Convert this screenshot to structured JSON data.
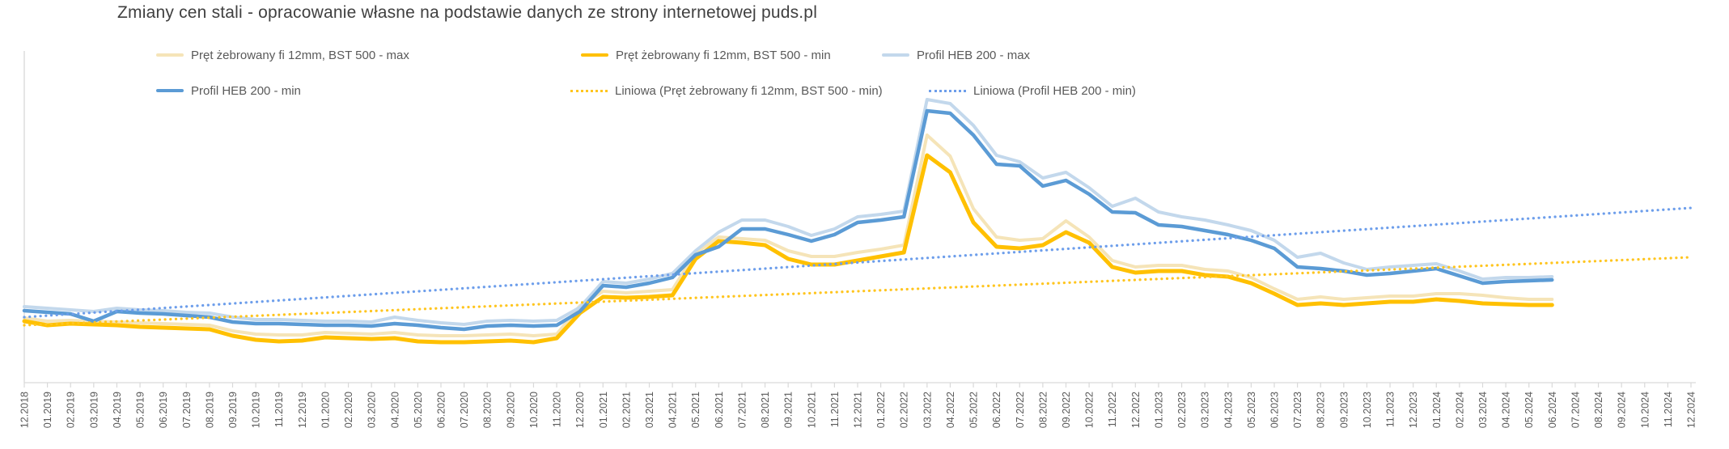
{
  "chart": {
    "title": "Zmiany cen stali - opracowanie własne na podstawie danych ze strony internetowej puds.pl",
    "legend": [
      {
        "label": "Pręt żebrowany fi 12mm, BST 500 - max",
        "color": "#F5E4B8",
        "style": "solid"
      },
      {
        "label": "Pręt żebrowany fi 12mm, BST 500 - min",
        "color": "#FFC000",
        "style": "solid"
      },
      {
        "label": "Profil HEB 200 - max",
        "color": "#C3D8EC",
        "style": "solid"
      },
      {
        "label": "Profil HEB 200 - min",
        "color": "#5B9BD5",
        "style": "solid"
      },
      {
        "label": "Liniowa (Pręt żebrowany fi 12mm, BST 500 - min)",
        "color": "#FFC51F",
        "style": "dotted"
      },
      {
        "label": "Liniowa (Profil HEB 200 - min)",
        "color": "#6D9EEB",
        "style": "dotted"
      }
    ],
    "colors": {
      "axis_line": "#D9D9D9",
      "tick": "#D9D9D9",
      "axis_label_text": "#595959",
      "title_text": "#404040",
      "legend_text": "#595959"
    }
  },
  "chart_data": {
    "type": "line",
    "title": "Zmiany cen stali - opracowanie własne na podstawie danych ze strony internetowej puds.pl",
    "xlabel": "",
    "ylabel": "",
    "y_axis_labels_visible": false,
    "values_unit": "relative price index (chart shows no y-axis scale)",
    "ylim": [
      0,
      410
    ],
    "grid": false,
    "legend_position": "top",
    "x": [
      "12.2018",
      "01.2019",
      "02.2019",
      "03.2019",
      "04.2019",
      "05.2019",
      "06.2019",
      "07.2019",
      "08.2019",
      "09.2019",
      "10.2019",
      "11.2019",
      "12.2019",
      "01.2020",
      "02.2020",
      "03.2020",
      "04.2020",
      "05.2020",
      "06.2020",
      "07.2020",
      "08.2020",
      "09.2020",
      "10.2020",
      "11.2020",
      "12.2020",
      "01.2021",
      "02.2021",
      "03.2021",
      "04.2021",
      "05.2021",
      "06.2021",
      "07.2021",
      "08.2021",
      "09.2021",
      "10.2021",
      "11.2021",
      "12.2021",
      "01.2022",
      "02.2022",
      "03.2022",
      "04.2022",
      "05.2022",
      "06.2022",
      "07.2022",
      "08.2022",
      "09.2022",
      "10.2022",
      "11.2022",
      "12.2022",
      "01.2023",
      "02.2023",
      "03.2023",
      "04.2023",
      "05.2023",
      "06.2023",
      "07.2023",
      "08.2023",
      "09.2023",
      "10.2023",
      "11.2023",
      "12.2023",
      "01.2024",
      "02.2024",
      "03.2024",
      "04.2024",
      "05.2024",
      "06.2024",
      "07.2024",
      "08.2024",
      "09.2024",
      "10.2024",
      "11.2024",
      "12.2024"
    ],
    "data_ends_at": "06.2024",
    "series": [
      {
        "key": "pret-zebrowany-max",
        "name": "Pręt żebrowany fi 12mm, BST 500 - max",
        "color": "#F5E4B8",
        "dash": "solid",
        "width": 4,
        "values": [
          80,
          76,
          77,
          76,
          75,
          74,
          73,
          72,
          71,
          64,
          60,
          59,
          59,
          62,
          61,
          60,
          62,
          59,
          58,
          58,
          59,
          60,
          58,
          60,
          95,
          113,
          111,
          113,
          115,
          160,
          180,
          178,
          176,
          163,
          156,
          156,
          161,
          165,
          170,
          306,
          280,
          215,
          180,
          176,
          178,
          200,
          180,
          151,
          143,
          145,
          145,
          140,
          138,
          130,
          116,
          103,
          106,
          103,
          105,
          107,
          107,
          110,
          110,
          108,
          105,
          103,
          103
        ]
      },
      {
        "key": "profil-heb-max",
        "name": "Profil HEB 200 - max",
        "color": "#C3D8EC",
        "dash": "solid",
        "width": 4,
        "values": [
          94,
          92,
          90,
          88,
          92,
          90,
          89,
          87,
          86,
          81,
          78,
          78,
          77,
          76,
          76,
          75,
          81,
          77,
          74,
          72,
          76,
          77,
          76,
          77,
          93,
          125,
          123,
          128,
          135,
          163,
          186,
          201,
          201,
          193,
          182,
          190,
          205,
          208,
          212,
          350,
          345,
          318,
          281,
          273,
          253,
          260,
          241,
          218,
          228,
          211,
          205,
          201,
          195,
          188,
          176,
          155,
          160,
          148,
          140,
          143,
          145,
          147,
          138,
          128,
          130,
          130,
          131
        ]
      },
      {
        "key": "pret-zebrowany-min",
        "name": "Pręt żebrowany fi 12mm, BST 500 - min",
        "color": "#FFC000",
        "dash": "solid",
        "width": 5,
        "values": [
          76,
          71,
          73,
          72,
          71,
          69,
          68,
          67,
          66,
          58,
          53,
          51,
          52,
          56,
          55,
          54,
          55,
          51,
          50,
          50,
          51,
          52,
          50,
          55,
          86,
          106,
          105,
          106,
          108,
          153,
          175,
          173,
          170,
          153,
          146,
          146,
          151,
          156,
          161,
          281,
          260,
          198,
          168,
          166,
          170,
          186,
          173,
          143,
          136,
          138,
          138,
          133,
          131,
          123,
          110,
          96,
          98,
          96,
          98,
          100,
          100,
          103,
          101,
          98,
          97,
          96,
          96
        ]
      },
      {
        "key": "profil-heb-min",
        "name": "Profil HEB 200 - min",
        "color": "#5B9BD5",
        "dash": "solid",
        "width": 4.5,
        "values": [
          89,
          87,
          85,
          76,
          88,
          86,
          85,
          83,
          81,
          75,
          73,
          73,
          72,
          71,
          71,
          70,
          73,
          71,
          68,
          66,
          70,
          71,
          70,
          71,
          88,
          120,
          118,
          123,
          130,
          158,
          168,
          190,
          190,
          183,
          175,
          183,
          198,
          201,
          205,
          336,
          333,
          306,
          270,
          268,
          243,
          250,
          233,
          211,
          210,
          195,
          193,
          188,
          183,
          176,
          166,
          143,
          141,
          138,
          133,
          135,
          138,
          141,
          132,
          123,
          125,
          126,
          127
        ]
      }
    ],
    "trendlines": [
      {
        "key": "liniowa-pret-min",
        "name": "Liniowa (Pręt żebrowany fi 12mm, BST 500 - min)",
        "color": "#FFC51F",
        "dash": "dotted",
        "start_value": 71,
        "end_value": 155
      },
      {
        "key": "liniowa-heb-min",
        "name": "Liniowa (Profil HEB 200 - min)",
        "color": "#6D9EEB",
        "dash": "dotted",
        "start_value": 81,
        "end_value": 216
      }
    ]
  }
}
